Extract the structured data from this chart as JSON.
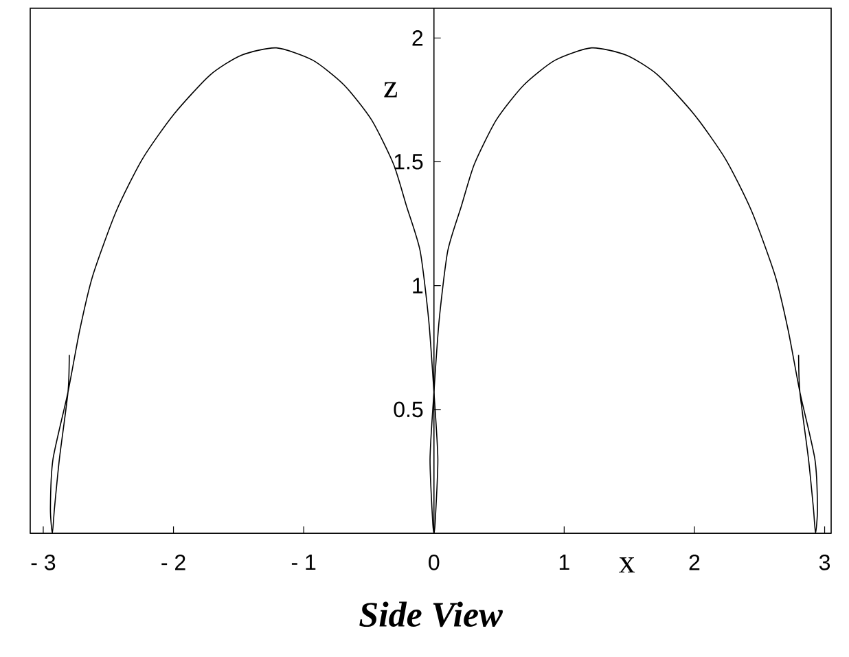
{
  "chart_data": {
    "type": "line",
    "title": "Side View",
    "xlabel": "x",
    "ylabel": "z",
    "x": [
      -2.8,
      -2.81,
      -2.876,
      -2.914,
      -2.93,
      -2.945,
      -2.925,
      -2.81,
      -2.72,
      -2.62,
      -2.44,
      -2.24,
      -2.0,
      -1.72,
      -1.48,
      -1.21,
      -0.93,
      -0.69,
      -0.48,
      -0.31,
      -0.21,
      -0.106,
      -0.04,
      0,
      0.03,
      0.01,
      0,
      -0.01,
      -0.03,
      0,
      0.04,
      0.106,
      0.21,
      0.31,
      0.48,
      0.69,
      0.93,
      1.21,
      1.48,
      1.72,
      2.0,
      2.24,
      2.44,
      2.62,
      2.72,
      2.81,
      2.925,
      2.945,
      2.93,
      2.914,
      2.876,
      2.81,
      2.8
    ],
    "series": [
      {
        "color": "#000000",
        "values": [
          0.72,
          0.57,
          0.3,
          0.1,
          0.0,
          0.1,
          0.3,
          0.57,
          0.82,
          1.04,
          1.3,
          1.51,
          1.69,
          1.85,
          1.93,
          1.96,
          1.91,
          1.81,
          1.67,
          1.49,
          1.32,
          1.14,
          0.86,
          0.57,
          0.3,
          0.05,
          0,
          0.05,
          0.3,
          0.57,
          0.86,
          1.14,
          1.32,
          1.49,
          1.67,
          1.81,
          1.91,
          1.96,
          1.93,
          1.85,
          1.69,
          1.51,
          1.3,
          1.04,
          0.82,
          0.57,
          0.3,
          0.1,
          0.0,
          0.1,
          0.3,
          0.57,
          0.72
        ]
      }
    ],
    "xlim": [
      -3.1,
      3.05
    ],
    "ylim": [
      0,
      2.12
    ],
    "xticks": [
      {
        "value": -3,
        "label": "- 3"
      },
      {
        "value": -2,
        "label": "- 2"
      },
      {
        "value": -1,
        "label": "- 1"
      },
      0,
      1,
      2,
      3
    ],
    "yticks": [
      0.5,
      1,
      1.5,
      2
    ],
    "marker": "none",
    "line_style": "solid"
  }
}
